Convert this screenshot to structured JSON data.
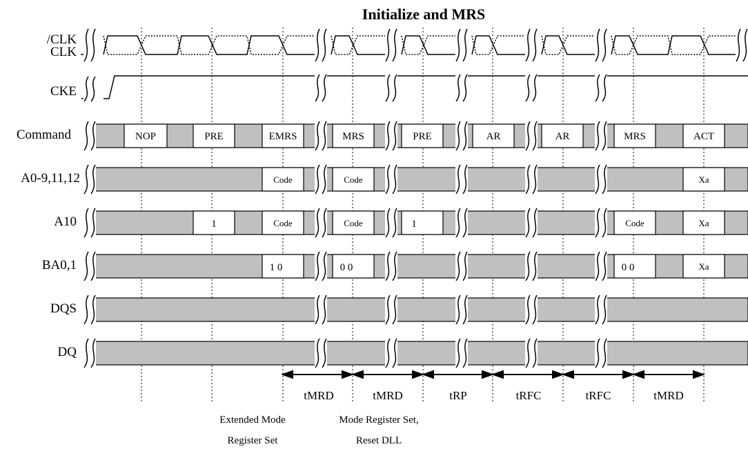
{
  "title": "Initialize and MRS",
  "signals": {
    "nclk": "/CLK",
    "clk": "CLK",
    "cke": "CKE",
    "command": "Command",
    "addr": "A0-9,11,12",
    "a10": "A10",
    "ba": "BA0,1",
    "dqs": "DQS",
    "dq": "DQ"
  },
  "commands": [
    "NOP",
    "PRE",
    "EMRS",
    "MRS",
    "PRE",
    "AR",
    "AR",
    "MRS",
    "ACT"
  ],
  "addr_values": [
    "Code",
    "Code",
    "Xa"
  ],
  "a10_values": [
    "1",
    "Code",
    "Code",
    "1",
    "Code",
    "Xa"
  ],
  "ba_values": [
    "1 0",
    "0 0",
    "0 0",
    "Xa"
  ],
  "timings": [
    "tMRD",
    "tMRD",
    "tRP",
    "tRFC",
    "tRFC",
    "tMRD"
  ],
  "notes": {
    "emrs_line1": "Extended Mode",
    "emrs_line2": "Register Set",
    "mrs_line1": "Mode Register Set,",
    "mrs_line2": "Reset DLL"
  },
  "colors": {
    "bus_fill": "#c0c0c0",
    "line": "#000000",
    "box_fill": "#ffffff"
  }
}
